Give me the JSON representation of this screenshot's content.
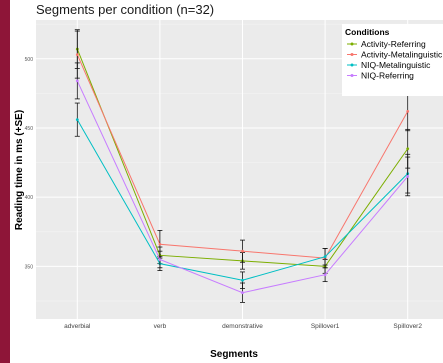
{
  "chart_data": {
    "type": "line",
    "title": "Segments per condition (n=32)",
    "xlabel": "Segments",
    "ylabel": "Reading time in ms (+SE)",
    "categories": [
      "adverbial",
      "verb",
      "demonstrative",
      "Spillover1",
      "Spillover2"
    ],
    "yticks": [
      350,
      400,
      450,
      500
    ],
    "ylim": [
      312,
      528
    ],
    "grid": true,
    "legend": {
      "title": "Conditions",
      "position": "top-right"
    },
    "series": [
      {
        "name": "Activity-Referring",
        "color": "#7cae00",
        "values": [
          507,
          358,
          354,
          350,
          435
        ],
        "se": [
          14,
          6,
          6,
          5,
          14
        ]
      },
      {
        "name": "Activity-Metalinguistic",
        "color": "#f8766d",
        "values": [
          503,
          366,
          361,
          356,
          462
        ],
        "se": [
          17,
          10,
          8,
          7,
          14
        ]
      },
      {
        "name": "NIQ-Metalinguistic",
        "color": "#00bfc4",
        "values": [
          456,
          352,
          340,
          357,
          417
        ],
        "se": [
          12,
          5,
          6,
          6,
          14
        ]
      },
      {
        "name": "NIQ-Referring",
        "color": "#c77cff",
        "values": [
          484,
          355,
          331,
          344,
          415
        ],
        "se": [
          13,
          6,
          7,
          5,
          14
        ]
      }
    ]
  }
}
